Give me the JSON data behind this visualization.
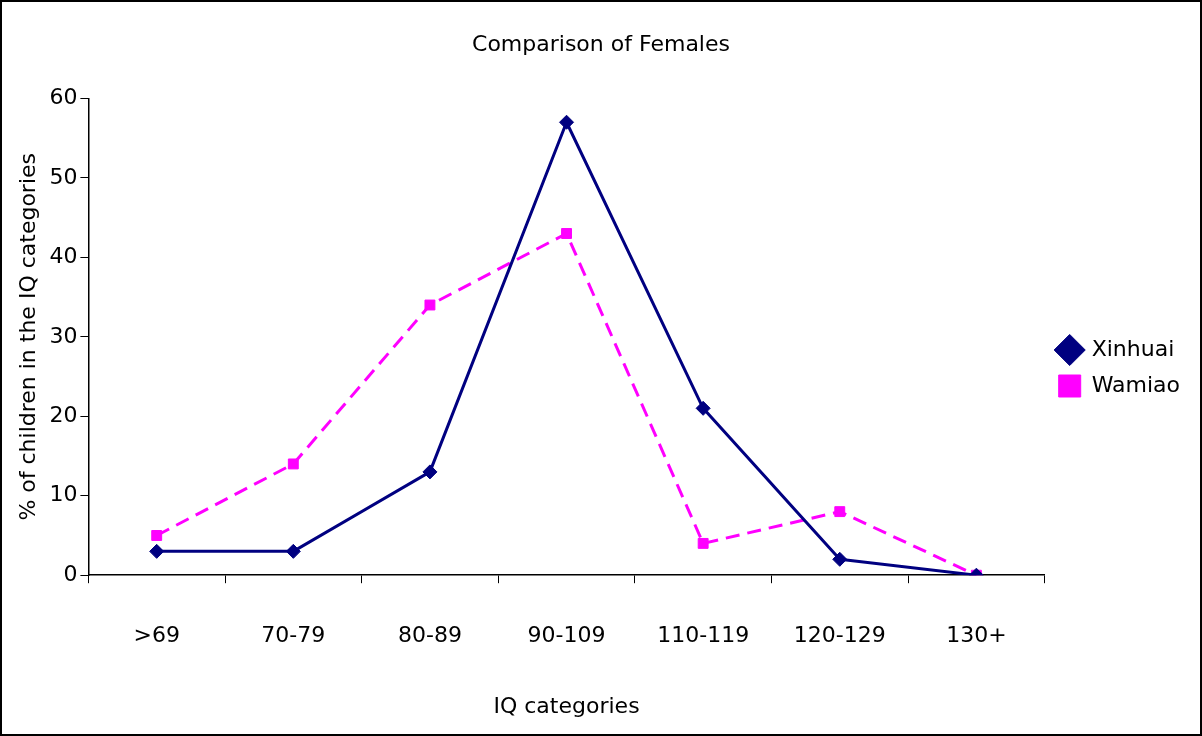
{
  "chart_data": {
    "type": "line",
    "title": "Comparison of Females",
    "xlabel": "IQ categories",
    "ylabel": "% of children in the IQ categories",
    "categories": [
      ">69",
      "70-79",
      "80-89",
      "90-109",
      "110-119",
      "120-129",
      "130+"
    ],
    "series": [
      {
        "name": "Xinhuai",
        "color": "#000080",
        "values": [
          3,
          3,
          13,
          57,
          21,
          2,
          0
        ],
        "marker": "diamond",
        "line_style": "solid"
      },
      {
        "name": "Wamiao",
        "color": "#ff00ff",
        "values": [
          5,
          14,
          34,
          43,
          4,
          8,
          0
        ],
        "marker": "square",
        "line_style": "dashed"
      }
    ],
    "ylim": [
      0,
      60
    ],
    "yticks": [
      0,
      10,
      20,
      30,
      40,
      50,
      60
    ],
    "grid": false,
    "legend": "right"
  }
}
